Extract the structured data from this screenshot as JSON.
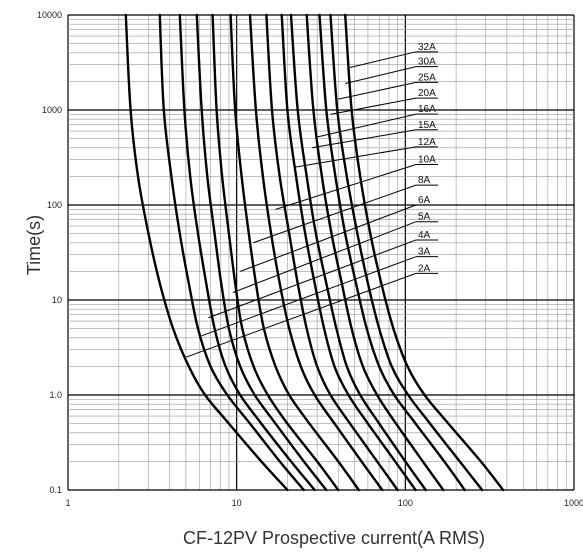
{
  "chart_data": {
    "type": "line",
    "title": "",
    "xlabel": "CF-12PV Prospective current(A RMS)",
    "ylabel": "Time(s)",
    "xscale": "log",
    "yscale": "log",
    "xlim": [
      1,
      1000
    ],
    "ylim": [
      0.1,
      10000
    ],
    "x_ticks": [
      "1",
      "10",
      "100",
      "1000"
    ],
    "y_ticks": [
      "0.1",
      "1.0",
      "10",
      "100",
      "1000",
      "10000"
    ],
    "grid": true,
    "series": [
      {
        "name": "2A",
        "label_y": 20,
        "anchor": [
          5,
          2.5
        ],
        "points": [
          [
            2.2,
            10000
          ],
          [
            2.35,
            1000
          ],
          [
            2.6,
            200
          ],
          [
            3.0,
            50
          ],
          [
            3.5,
            15
          ],
          [
            4.2,
            5
          ],
          [
            5.2,
            2
          ],
          [
            6.5,
            1
          ],
          [
            9,
            0.5
          ],
          [
            14,
            0.2
          ],
          [
            20,
            0.1
          ]
        ]
      },
      {
        "name": "3A",
        "label_y": 30,
        "anchor": [
          6.2,
          4.2
        ],
        "points": [
          [
            3.5,
            10000
          ],
          [
            3.7,
            1000
          ],
          [
            4.1,
            200
          ],
          [
            4.6,
            50
          ],
          [
            5.2,
            15
          ],
          [
            5.9,
            5
          ],
          [
            7,
            2
          ],
          [
            8.8,
            1
          ],
          [
            12,
            0.5
          ],
          [
            18,
            0.2
          ],
          [
            25,
            0.1
          ]
        ]
      },
      {
        "name": "4A",
        "label_y": 45,
        "anchor": [
          6.8,
          6.5
        ],
        "points": [
          [
            4.6,
            10000
          ],
          [
            4.9,
            1000
          ],
          [
            5.3,
            200
          ],
          [
            5.9,
            50
          ],
          [
            6.6,
            15
          ],
          [
            7.4,
            5
          ],
          [
            8.6,
            2
          ],
          [
            10.5,
            1
          ],
          [
            14,
            0.5
          ],
          [
            21,
            0.2
          ],
          [
            29,
            0.1
          ]
        ]
      },
      {
        "name": "5A",
        "label_y": 70,
        "anchor": [
          9.5,
          12
        ],
        "points": [
          [
            5.8,
            10000
          ],
          [
            6.2,
            1000
          ],
          [
            6.7,
            200
          ],
          [
            7.4,
            50
          ],
          [
            8.1,
            15
          ],
          [
            9,
            5
          ],
          [
            10.5,
            2
          ],
          [
            12.8,
            1
          ],
          [
            17,
            0.5
          ],
          [
            25,
            0.2
          ],
          [
            34,
            0.1
          ]
        ]
      },
      {
        "name": "6A",
        "label_y": 105,
        "anchor": [
          10.5,
          20
        ],
        "points": [
          [
            7.2,
            10000
          ],
          [
            7.6,
            1000
          ],
          [
            8.2,
            200
          ],
          [
            9,
            50
          ],
          [
            9.8,
            15
          ],
          [
            10.8,
            5
          ],
          [
            12.6,
            2
          ],
          [
            15.3,
            1
          ],
          [
            20,
            0.5
          ],
          [
            30,
            0.2
          ],
          [
            40,
            0.1
          ]
        ]
      },
      {
        "name": "8A",
        "label_y": 170,
        "anchor": [
          12.5,
          40
        ],
        "points": [
          [
            9.2,
            10000
          ],
          [
            9.8,
            1000
          ],
          [
            10.7,
            200
          ],
          [
            11.8,
            50
          ],
          [
            13,
            15
          ],
          [
            14.5,
            5
          ],
          [
            17,
            2
          ],
          [
            20.5,
            1
          ],
          [
            27,
            0.5
          ],
          [
            40,
            0.2
          ],
          [
            53,
            0.1
          ]
        ]
      },
      {
        "name": "10A",
        "label_y": 280,
        "anchor": [
          17,
          90
        ],
        "points": [
          [
            12,
            10000
          ],
          [
            13,
            1000
          ],
          [
            14.3,
            200
          ],
          [
            16,
            50
          ],
          [
            18,
            15
          ],
          [
            20.5,
            5
          ],
          [
            24,
            2
          ],
          [
            29,
            1
          ],
          [
            38,
            0.5
          ],
          [
            55,
            0.2
          ],
          [
            73,
            0.1
          ]
        ]
      },
      {
        "name": "12A",
        "label_y": 430,
        "anchor": [
          22,
          250
        ],
        "points": [
          [
            15,
            10000
          ],
          [
            16.2,
            1000
          ],
          [
            18,
            200
          ],
          [
            20.5,
            50
          ],
          [
            23,
            15
          ],
          [
            26,
            5
          ],
          [
            30,
            2
          ],
          [
            36,
            1
          ],
          [
            47,
            0.5
          ],
          [
            68,
            0.2
          ],
          [
            90,
            0.1
          ]
        ]
      },
      {
        "name": "15A",
        "label_y": 650,
        "anchor": [
          28,
          400
        ],
        "points": [
          [
            18.5,
            10000
          ],
          [
            20,
            1000
          ],
          [
            22.5,
            200
          ],
          [
            25.5,
            50
          ],
          [
            29,
            15
          ],
          [
            33,
            5
          ],
          [
            38,
            2
          ],
          [
            46,
            1
          ],
          [
            60,
            0.5
          ],
          [
            87,
            0.2
          ],
          [
            115,
            0.1
          ]
        ]
      },
      {
        "name": "16A",
        "label_y": 950,
        "anchor": [
          30,
          520
        ],
        "points": [
          [
            21,
            10000
          ],
          [
            23,
            1000
          ],
          [
            26,
            200
          ],
          [
            29.5,
            50
          ],
          [
            34,
            15
          ],
          [
            39,
            5
          ],
          [
            45,
            2
          ],
          [
            54,
            1
          ],
          [
            70,
            0.5
          ],
          [
            100,
            0.2
          ],
          [
            132,
            0.1
          ]
        ]
      },
      {
        "name": "20A",
        "label_y": 1400,
        "anchor": [
          36,
          900
        ],
        "points": [
          [
            26,
            10000
          ],
          [
            28.5,
            1000
          ],
          [
            32,
            200
          ],
          [
            36.5,
            50
          ],
          [
            42,
            15
          ],
          [
            48,
            5
          ],
          [
            56,
            2
          ],
          [
            68,
            1
          ],
          [
            88,
            0.5
          ],
          [
            127,
            0.2
          ],
          [
            168,
            0.1
          ]
        ]
      },
      {
        "name": "25A",
        "label_y": 2050,
        "anchor": [
          40,
          1300
        ],
        "points": [
          [
            31,
            10000
          ],
          [
            34,
            1000
          ],
          [
            38.5,
            200
          ],
          [
            44,
            50
          ],
          [
            51,
            15
          ],
          [
            59,
            5
          ],
          [
            70,
            2
          ],
          [
            86,
            1
          ],
          [
            115,
            0.5
          ],
          [
            170,
            0.2
          ],
          [
            225,
            0.1
          ]
        ]
      },
      {
        "name": "30A",
        "label_y": 3000,
        "anchor": [
          44,
          1900
        ],
        "points": [
          [
            36,
            10000
          ],
          [
            39.5,
            1000
          ],
          [
            45,
            200
          ],
          [
            52,
            50
          ],
          [
            60,
            15
          ],
          [
            70,
            5
          ],
          [
            83,
            2
          ],
          [
            104,
            1
          ],
          [
            140,
            0.5
          ],
          [
            210,
            0.2
          ],
          [
            285,
            0.1
          ]
        ]
      },
      {
        "name": "32A",
        "label_y": 4300,
        "anchor": [
          47,
          2800
        ],
        "points": [
          [
            44,
            10000
          ],
          [
            48,
            1000
          ],
          [
            54,
            200
          ],
          [
            62,
            50
          ],
          [
            72,
            15
          ],
          [
            85,
            5
          ],
          [
            103,
            2
          ],
          [
            130,
            1
          ],
          [
            180,
            0.5
          ],
          [
            280,
            0.2
          ],
          [
            380,
            0.1
          ]
        ]
      }
    ]
  }
}
